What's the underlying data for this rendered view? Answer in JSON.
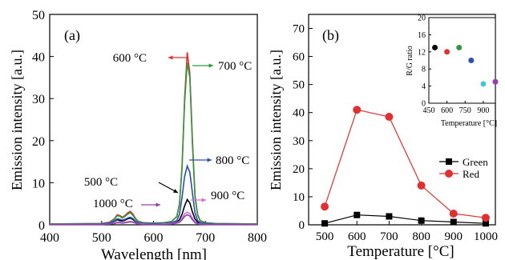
{
  "chart_data": [
    {
      "type": "line",
      "panel_label": "(a)",
      "xlabel": "Wavelength [nm]",
      "ylabel": "Emission intensity [a.u.]",
      "xlim": [
        400,
        800
      ],
      "ylim": [
        0,
        50
      ],
      "xticks": [
        400,
        500,
        600,
        700,
        800
      ],
      "yticks": [
        0,
        10,
        20,
        30,
        40,
        50
      ],
      "grid": false,
      "series": [
        {
          "name": "500 °C",
          "color": "#000000",
          "x": [
            400,
            500,
            515,
            525,
            530,
            535,
            540,
            545,
            550,
            555,
            560,
            565,
            570,
            580,
            600,
            620,
            635,
            645,
            650,
            655,
            660,
            665,
            670,
            675,
            680,
            685,
            690,
            700,
            720,
            800
          ],
          "y": [
            0.1,
            0.2,
            0.4,
            0.8,
            1.2,
            1.0,
            0.9,
            1.1,
            1.4,
            1.6,
            1.3,
            0.8,
            0.5,
            0.3,
            0.2,
            0.2,
            0.3,
            0.6,
            1.2,
            2.5,
            4.5,
            6.0,
            5.2,
            3.0,
            1.4,
            0.6,
            0.3,
            0.2,
            0.1,
            0.1
          ]
        },
        {
          "name": "600 °C",
          "color": "#e03030",
          "x": [
            400,
            500,
            515,
            525,
            530,
            535,
            540,
            545,
            550,
            555,
            560,
            565,
            570,
            580,
            600,
            620,
            635,
            645,
            650,
            655,
            660,
            665,
            670,
            675,
            680,
            685,
            690,
            700,
            720,
            800
          ],
          "y": [
            0.2,
            0.3,
            0.6,
            1.5,
            2.4,
            2.2,
            1.8,
            2.2,
            2.8,
            3.2,
            2.6,
            1.6,
            0.9,
            0.5,
            0.4,
            0.5,
            0.8,
            2.0,
            5.0,
            14.0,
            30.0,
            41.0,
            36.0,
            20.0,
            7.0,
            2.5,
            1.0,
            0.5,
            0.3,
            0.2
          ]
        },
        {
          "name": "700 °C",
          "color": "#2e9a3e",
          "x": [
            400,
            500,
            515,
            525,
            530,
            535,
            540,
            545,
            550,
            555,
            560,
            565,
            570,
            580,
            600,
            620,
            635,
            645,
            650,
            655,
            660,
            665,
            670,
            675,
            680,
            685,
            690,
            700,
            720,
            800
          ],
          "y": [
            0.2,
            0.3,
            0.5,
            1.3,
            2.2,
            2.0,
            1.6,
            2.0,
            2.5,
            2.9,
            2.3,
            1.4,
            0.8,
            0.5,
            0.4,
            0.5,
            0.8,
            1.9,
            4.8,
            13.5,
            29.0,
            38.5,
            35.0,
            19.0,
            6.5,
            2.3,
            0.9,
            0.5,
            0.3,
            0.2
          ]
        },
        {
          "name": "800 °C",
          "color": "#2c4fb0",
          "x": [
            400,
            500,
            515,
            525,
            530,
            535,
            540,
            545,
            550,
            555,
            560,
            565,
            570,
            580,
            600,
            620,
            635,
            645,
            650,
            655,
            660,
            665,
            670,
            675,
            680,
            685,
            690,
            700,
            720,
            800
          ],
          "y": [
            0.1,
            0.2,
            0.4,
            0.9,
            1.4,
            1.3,
            1.1,
            1.3,
            1.6,
            1.8,
            1.5,
            0.9,
            0.5,
            0.3,
            0.3,
            0.3,
            0.5,
            1.0,
            2.5,
            6.5,
            11.5,
            14.0,
            12.5,
            7.5,
            2.8,
            1.0,
            0.5,
            0.3,
            0.2,
            0.1
          ]
        },
        {
          "name": "900 °C",
          "color": "#d070d0",
          "x": [
            400,
            500,
            515,
            525,
            530,
            535,
            540,
            545,
            550,
            555,
            560,
            565,
            570,
            580,
            600,
            620,
            635,
            645,
            650,
            655,
            660,
            665,
            670,
            675,
            680,
            685,
            690,
            700,
            720,
            800
          ],
          "y": [
            0.1,
            0.1,
            0.2,
            0.4,
            0.6,
            0.6,
            0.5,
            0.6,
            0.7,
            0.8,
            0.7,
            0.4,
            0.3,
            0.2,
            0.1,
            0.2,
            0.3,
            0.5,
            0.8,
            1.6,
            2.6,
            3.0,
            2.7,
            1.6,
            0.7,
            0.3,
            0.2,
            0.1,
            0.1,
            0.1
          ]
        },
        {
          "name": "1000 °C",
          "color": "#9040b0",
          "x": [
            400,
            500,
            515,
            525,
            530,
            535,
            540,
            545,
            550,
            555,
            560,
            565,
            570,
            580,
            600,
            620,
            635,
            645,
            650,
            655,
            660,
            665,
            670,
            675,
            680,
            685,
            690,
            700,
            720,
            800
          ],
          "y": [
            0.1,
            0.1,
            0.2,
            0.3,
            0.5,
            0.5,
            0.4,
            0.5,
            0.6,
            0.7,
            0.6,
            0.4,
            0.2,
            0.1,
            0.1,
            0.1,
            0.2,
            0.4,
            0.6,
            1.2,
            2.0,
            2.4,
            2.1,
            1.2,
            0.5,
            0.2,
            0.1,
            0.1,
            0.1,
            0.1
          ]
        }
      ],
      "annotations": [
        {
          "text": "600 °C",
          "color": "#e03030"
        },
        {
          "text": "700 °C",
          "color": "#2e9a3e"
        },
        {
          "text": "800 °C",
          "color": "#2c4fb0"
        },
        {
          "text": "500 °C",
          "color": "#000000"
        },
        {
          "text": "900 °C",
          "color": "#d070d0"
        },
        {
          "text": "1000 °C",
          "color": "#9040b0"
        }
      ]
    },
    {
      "type": "line",
      "panel_label": "(b)",
      "xlabel": "Temperature [°C]",
      "ylabel": "Emission intensity [a.u.]",
      "xlim": [
        450,
        1030
      ],
      "ylim": [
        0,
        75
      ],
      "xticks": [
        500,
        600,
        700,
        800,
        900,
        1000
      ],
      "yticks": [
        0,
        10,
        20,
        30,
        40,
        50,
        60,
        70
      ],
      "grid": false,
      "legend_position": "center-right",
      "series": [
        {
          "name": "Green",
          "color": "#000000",
          "marker": "square",
          "x": [
            500,
            600,
            700,
            800,
            900,
            1000
          ],
          "y": [
            0.5,
            3.5,
            3.0,
            1.5,
            1.0,
            0.5
          ]
        },
        {
          "name": "Red",
          "color": "#e03030",
          "marker": "circle",
          "x": [
            500,
            600,
            700,
            800,
            900,
            1000
          ],
          "y": [
            6.5,
            41.0,
            38.5,
            14.0,
            4.0,
            2.5
          ]
        }
      ]
    },
    {
      "type": "scatter",
      "inset": true,
      "xlabel": "Temperature [°C]",
      "ylabel": "R/G ratio",
      "xlim": [
        450,
        1000
      ],
      "ylim": [
        0,
        20
      ],
      "xticks": [
        450,
        600,
        750,
        900
      ],
      "yticks": [
        0,
        4,
        8,
        12,
        16,
        20
      ],
      "points": [
        {
          "x": 500,
          "y": 13.0,
          "color": "#000000"
        },
        {
          "x": 600,
          "y": 12.0,
          "color": "#e03030"
        },
        {
          "x": 700,
          "y": 13.0,
          "color": "#2e9a3e"
        },
        {
          "x": 800,
          "y": 10.0,
          "color": "#2c4fb0"
        },
        {
          "x": 900,
          "y": 4.5,
          "color": "#40c8d8"
        },
        {
          "x": 1000,
          "y": 5.0,
          "color": "#9040b0"
        }
      ]
    }
  ]
}
